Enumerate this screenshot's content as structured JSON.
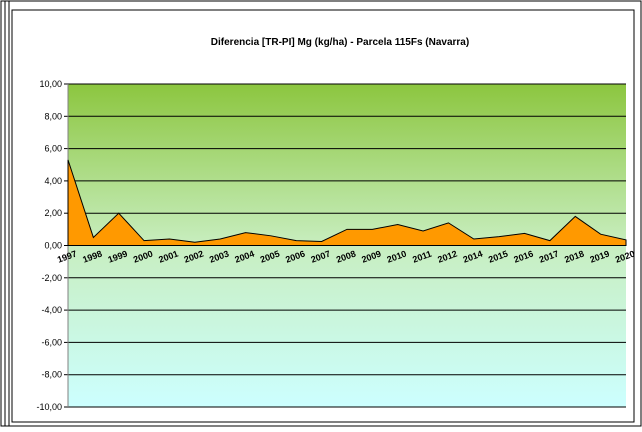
{
  "chart_data": {
    "type": "area",
    "title": "Diferencia [TR-PI] Mg (kg/ha) - Parcela 115Fs (Navarra)",
    "categories": [
      "1997",
      "1998",
      "1999",
      "2000",
      "2001",
      "2002",
      "2003",
      "2004",
      "2005",
      "2006",
      "2007",
      "2008",
      "2009",
      "2010",
      "2011",
      "2012",
      "2014",
      "2015",
      "2016",
      "2017",
      "2018",
      "2019",
      "2020"
    ],
    "values": [
      5.3,
      0.5,
      2.0,
      0.3,
      0.4,
      0.2,
      0.4,
      0.8,
      0.6,
      0.3,
      0.25,
      1.0,
      1.0,
      1.3,
      0.9,
      1.4,
      0.4,
      0.55,
      0.75,
      0.3,
      1.8,
      0.7,
      0.35
    ],
    "color": "#ff9900",
    "ylim": [
      -10,
      10
    ],
    "yticks": [
      {
        "value": -10,
        "label": "-10,00"
      },
      {
        "value": -8,
        "label": "-8,00"
      },
      {
        "value": -6,
        "label": "-6,00"
      },
      {
        "value": -4,
        "label": "-4,00"
      },
      {
        "value": -2,
        "label": "-2,00"
      },
      {
        "value": 0,
        "label": "0,00"
      },
      {
        "value": 2,
        "label": "2,00"
      },
      {
        "value": 4,
        "label": "4,00"
      },
      {
        "value": 6,
        "label": "6,00"
      },
      {
        "value": 8,
        "label": "8,00"
      },
      {
        "value": 10,
        "label": "10,00"
      }
    ],
    "grid": true
  }
}
